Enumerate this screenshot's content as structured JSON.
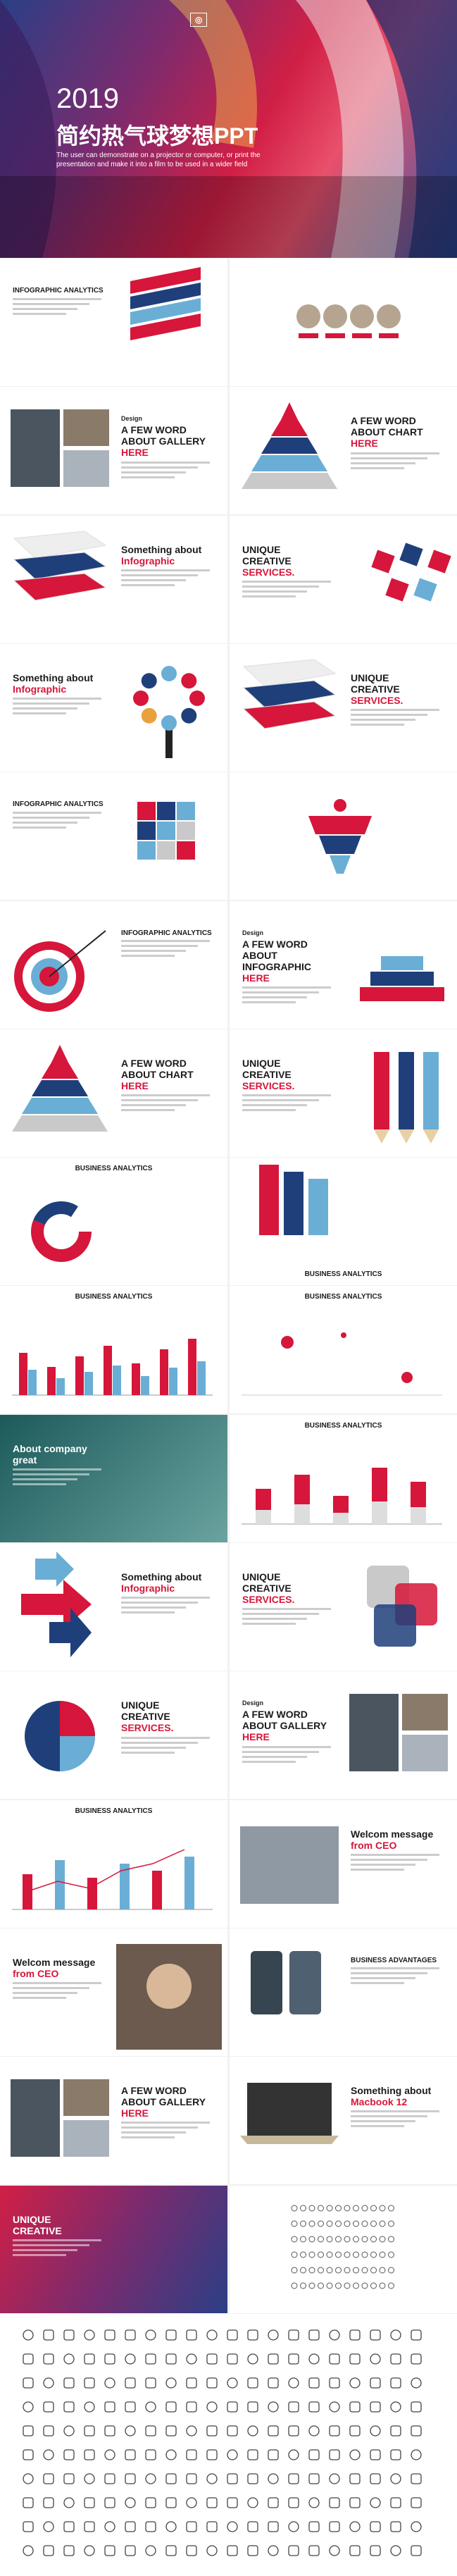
{
  "hero": {
    "year": "2019",
    "title": "简约热气球梦想PPT",
    "subtitle": "The user can demonstrate on a projector or computer, or print the presentation and make it into a film to be used in a wider field"
  },
  "slides": [
    {
      "title": [
        "INFOGRAPHIC ANALYTICS"
      ]
    },
    {},
    {
      "title": [
        "A FEW WORD",
        "ABOUT GALLERY",
        "HERE"
      ],
      "note": "Design"
    },
    {
      "title": [
        "A FEW WORD",
        "ABOUT CHART",
        "HERE"
      ]
    },
    {
      "title": [
        "Something about",
        "Infographic"
      ]
    },
    {
      "title": [
        "UNIQUE",
        "CREATIVE",
        "SERVICES."
      ]
    },
    {
      "title": [
        "Something about",
        "Infographic"
      ]
    },
    {
      "title": [
        "UNIQUE",
        "CREATIVE",
        "SERVICES."
      ]
    },
    {
      "title": [
        "INFOGRAPHIC ANALYTICS"
      ]
    },
    {},
    {
      "title": [
        "INFOGRAPHIC ANALYTICS"
      ]
    },
    {
      "title": [
        "A FEW WORD",
        "ABOUT INFOGRAPHIC",
        "HERE"
      ],
      "note": "Design"
    },
    {
      "title": [
        "A FEW WORD",
        "ABOUT CHART",
        "HERE"
      ]
    },
    {
      "title": [
        "UNIQUE",
        "CREATIVE",
        "SERVICES."
      ]
    },
    {
      "title": [
        "BUSINESS ANALYTICS"
      ]
    },
    {
      "title": [
        "BUSINESS ANALYTICS"
      ]
    },
    {
      "title": [
        "BUSINESS ANALYTICS"
      ]
    },
    {
      "title": [
        "BUSINESS ANALYTICS"
      ]
    },
    {
      "title": [
        "About company",
        "great"
      ]
    },
    {
      "title": [
        "BUSINESS ANALYTICS"
      ]
    },
    {
      "title": [
        "Something about",
        "Infographic"
      ]
    },
    {
      "title": [
        "UNIQUE",
        "CREATIVE",
        "SERVICES."
      ]
    },
    {
      "title": [
        "UNIQUE",
        "CREATIVE",
        "SERVICES."
      ]
    },
    {
      "title": [
        "A FEW WORD",
        "ABOUT GALLERY",
        "HERE"
      ],
      "note": "Design"
    },
    {
      "title": [
        "BUSINESS ANALYTICS"
      ]
    },
    {
      "title": [
        "Welcom message",
        "from CEO"
      ]
    },
    {
      "title": [
        "Welcom message",
        "from CEO"
      ]
    },
    {
      "title": [
        "BUSINESS ADVANTAGES"
      ]
    },
    {
      "title": [
        "A FEW WORD",
        "ABOUT GALLERY",
        "HERE"
      ]
    },
    {
      "title": [
        "Something about",
        "Macbook 12"
      ]
    },
    {
      "title": [
        "UNIQUE",
        "CREATIVE"
      ]
    },
    {}
  ]
}
